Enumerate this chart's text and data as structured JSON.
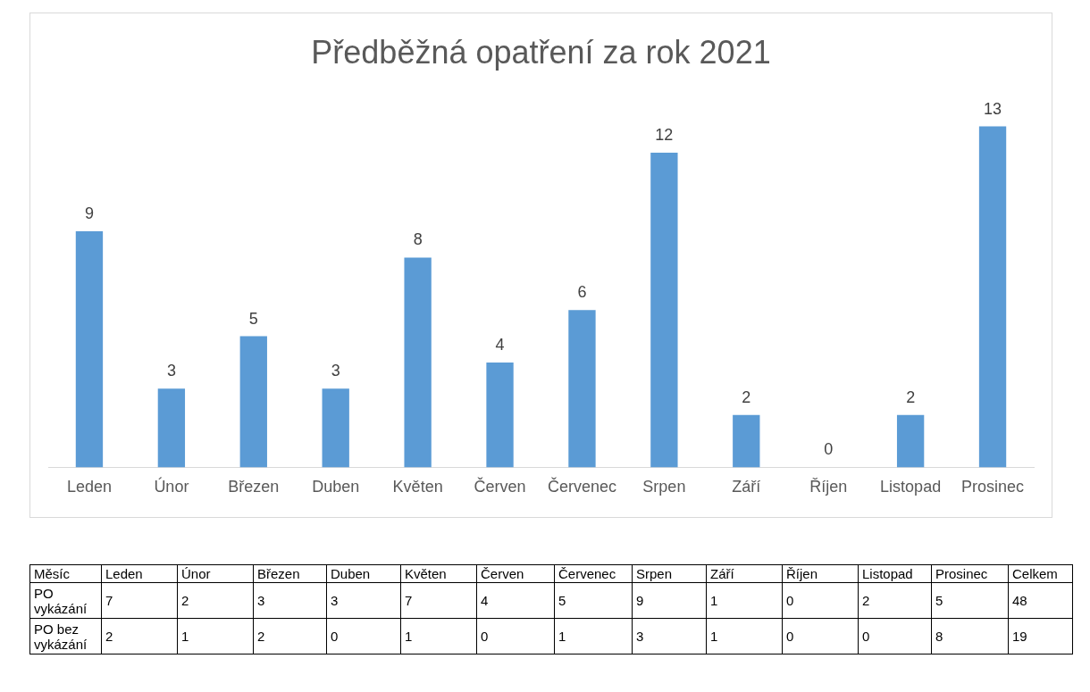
{
  "chart_data": [
    {
      "type": "bar",
      "title": "Předběžná opatření za rok 2021",
      "categories": [
        "Leden",
        "Únor",
        "Březen",
        "Duben",
        "Květen",
        "Červen",
        "Červenec",
        "Srpen",
        "Září",
        "Říjen",
        "Listopad",
        "Prosinec"
      ],
      "values": [
        9,
        3,
        5,
        3,
        8,
        4,
        6,
        12,
        2,
        0,
        2,
        13
      ],
      "color": "#5b9bd5",
      "data_labels": true,
      "grid": false,
      "legend": false,
      "tick_labels": "x"
    },
    {
      "type": "other",
      "annotations": [
        "Měsíc",
        "Leden",
        "Únor",
        "Březen",
        "Duben",
        "Květen",
        "Červen",
        "Červenec",
        "Srpen",
        "Září",
        "Říjen",
        "Listopad",
        "Prosinec",
        "Celkem",
        "PO vykázání",
        "7",
        "2",
        "3",
        "3",
        "7",
        "4",
        "5",
        "9",
        "1",
        "0",
        "2",
        "5",
        "48",
        "PO bez vykázání",
        "2",
        "1",
        "2",
        "0",
        "1",
        "0",
        "1",
        "3",
        "1",
        "0",
        "0",
        "8",
        "19"
      ]
    }
  ]
}
